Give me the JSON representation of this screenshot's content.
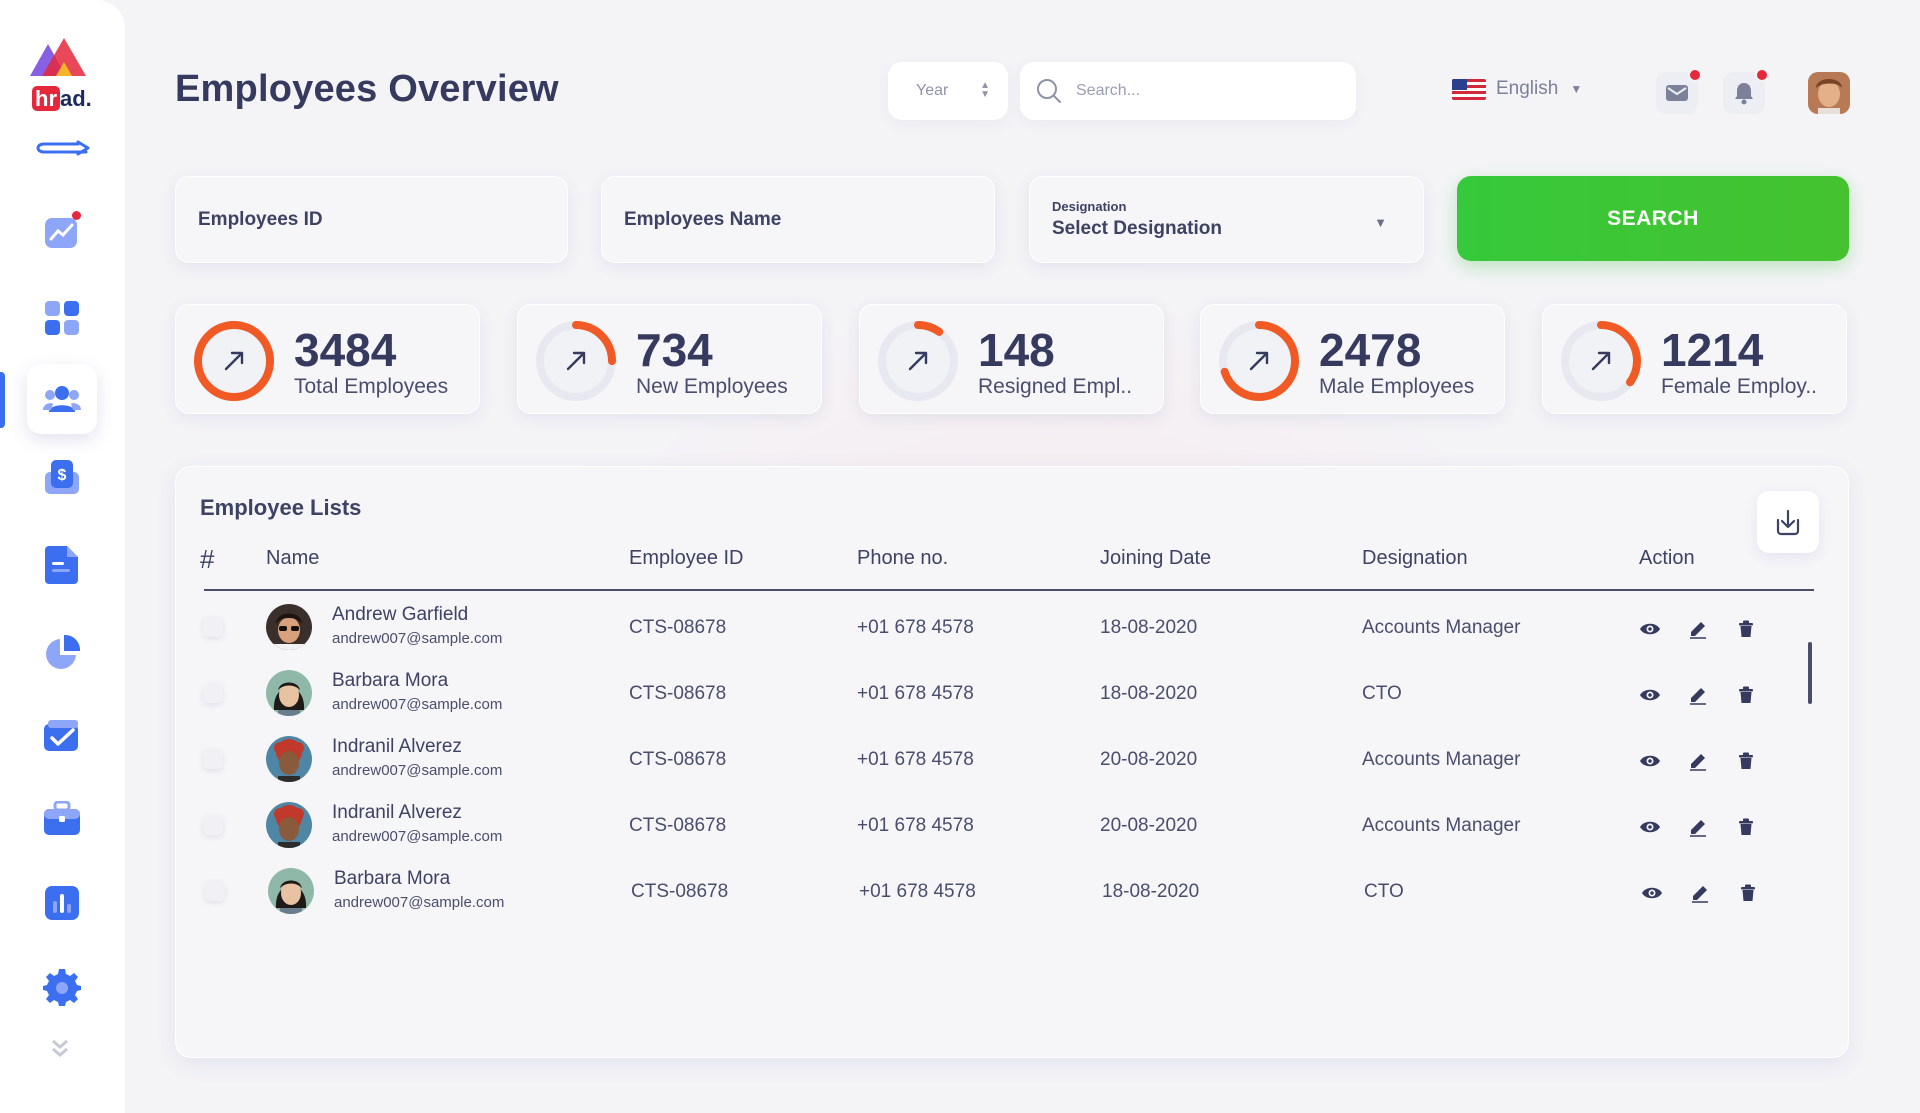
{
  "app": {
    "logo_text_hr": "hr",
    "logo_text_ad": "ad."
  },
  "header": {
    "title": "Employees Overview",
    "year_label": "Year",
    "search_placeholder": "Search...",
    "language": "English",
    "mail_has_notification": true,
    "bell_has_notification": true
  },
  "sidebar": {
    "items": [
      {
        "name": "dashboard",
        "icon": "chart-trend-icon",
        "badge": true
      },
      {
        "name": "apps",
        "icon": "grid-icon"
      },
      {
        "name": "employees",
        "icon": "users-icon",
        "active": true
      },
      {
        "name": "payroll",
        "icon": "dollar-shield-icon"
      },
      {
        "name": "documents",
        "icon": "document-icon"
      },
      {
        "name": "reports",
        "icon": "pie-chart-icon"
      },
      {
        "name": "tasks",
        "icon": "checklist-icon"
      },
      {
        "name": "jobs",
        "icon": "briefcase-icon"
      },
      {
        "name": "analytics",
        "icon": "bar-chart-icon"
      },
      {
        "name": "settings",
        "icon": "gear-icon"
      }
    ]
  },
  "filters": {
    "employee_id_placeholder": "Employees ID",
    "employee_name_placeholder": "Employees Name",
    "designation_label": "Designation",
    "designation_value": "Select Designation",
    "search_button": "SEARCH"
  },
  "stats": [
    {
      "value": "3484",
      "label": "Total Employees",
      "progress": 1.0
    },
    {
      "value": "734",
      "label": "New Employees",
      "progress": 0.25
    },
    {
      "value": "148",
      "label": "Resigned Empl..",
      "progress": 0.1
    },
    {
      "value": "2478",
      "label": "Male Employees",
      "progress": 0.7
    },
    {
      "value": "1214",
      "label": "Female Employ..",
      "progress": 0.35
    }
  ],
  "colors": {
    "accent_orange": "#f15a24",
    "search_green": "#3fc535",
    "primary_blue": "#3b6ff0",
    "text_dark": "#353a5e"
  },
  "table": {
    "title": "Employee Lists",
    "columns": {
      "hash": "#",
      "name": "Name",
      "employee_id": "Employee ID",
      "phone": "Phone no.",
      "joining_date": "Joining Date",
      "designation": "Designation",
      "action": "Action"
    },
    "rows": [
      {
        "name": "Andrew Garfield",
        "email": "andrew007@sample.com",
        "id": "CTS-08678",
        "phone": "+01 678 4578",
        "date": "18-08-2020",
        "designation": "Accounts Manager",
        "avatar": "man-sunglasses"
      },
      {
        "name": "Barbara Mora",
        "email": "andrew007@sample.com",
        "id": "CTS-08678",
        "phone": "+01 678 4578",
        "date": "18-08-2020",
        "designation": "CTO",
        "avatar": "woman-dark-hair"
      },
      {
        "name": "Indranil Alverez",
        "email": "andrew007@sample.com",
        "id": "CTS-08678",
        "phone": "+01 678 4578",
        "date": "20-08-2020",
        "designation": "Accounts Manager",
        "avatar": "woman-red-hair"
      },
      {
        "name": "Indranil Alverez",
        "email": "andrew007@sample.com",
        "id": "CTS-08678",
        "phone": "+01 678 4578",
        "date": "20-08-2020",
        "designation": "Accounts Manager",
        "avatar": "woman-red-hair"
      },
      {
        "name": "Barbara Mora",
        "email": "andrew007@sample.com",
        "id": "CTS-08678",
        "phone": "+01 678 4578",
        "date": "18-08-2020",
        "designation": "CTO",
        "avatar": "woman-dark-hair"
      }
    ]
  }
}
